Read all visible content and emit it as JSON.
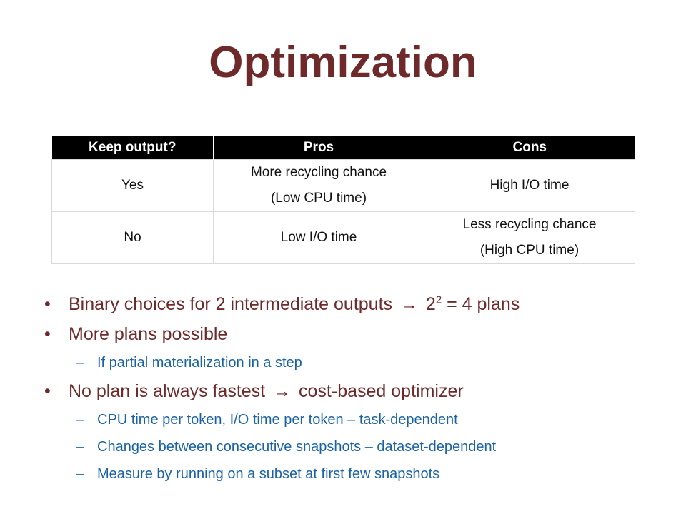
{
  "title": "Optimization",
  "table": {
    "headers": [
      "Keep output?",
      "Pros",
      "Cons"
    ],
    "rows": [
      {
        "keep": "Yes",
        "pros": [
          "More recycling chance",
          "(Low CPU time)"
        ],
        "cons": [
          "High I/O time"
        ]
      },
      {
        "keep": "No",
        "pros": [
          "Low I/O time"
        ],
        "cons": [
          "Less recycling chance",
          "(High CPU time)"
        ]
      }
    ]
  },
  "bullets": {
    "b1": {
      "pre": "Binary choices for 2 intermediate outputs",
      "arrow": "→",
      "base": "2",
      "exp": "2",
      "post": "= 4 plans"
    },
    "b2": {
      "text": "More plans possible"
    },
    "b2_sub": [
      "If partial materialization in a step"
    ],
    "b3": {
      "pre": "No plan is always fastest",
      "arrow": "→",
      "post": "cost-based optimizer"
    },
    "b3_sub": [
      "CPU time per token, I/O time per token – task-dependent",
      "Changes between consecutive snapshots – dataset-dependent",
      "Measure by running on a subset at first few snapshots"
    ]
  },
  "colors": {
    "title": "#6e2a2a",
    "bullet_text": "#6e2a2a",
    "sub_bullet_text": "#1a62a6",
    "table_header_bg": "#000000"
  }
}
